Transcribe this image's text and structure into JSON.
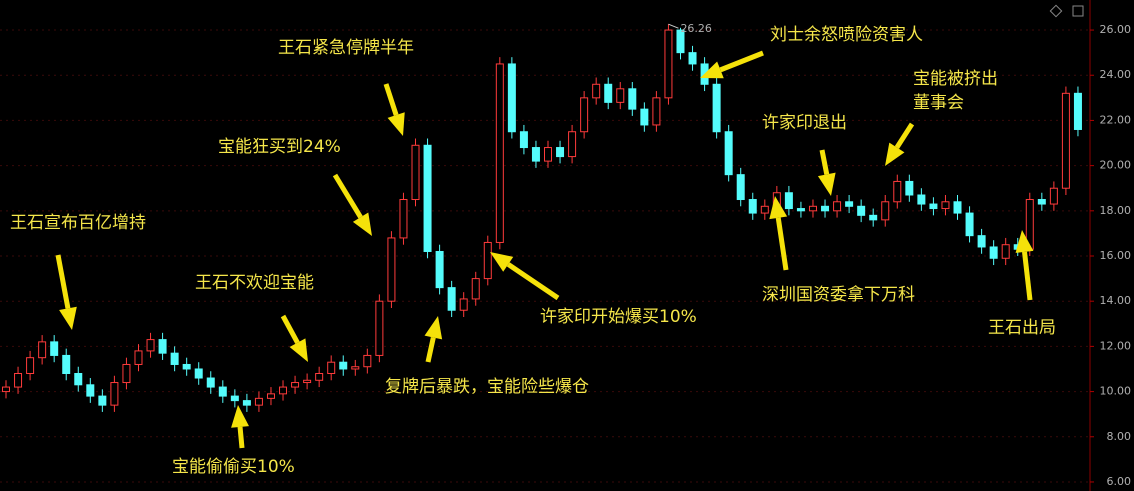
{
  "chart_data": {
    "type": "candlestick",
    "open": [
      10.0,
      10.2,
      10.8,
      11.5,
      12.2,
      11.6,
      10.8,
      10.3,
      9.8,
      9.4,
      10.4,
      11.2,
      11.8,
      12.3,
      11.7,
      11.2,
      11.0,
      10.6,
      10.2,
      9.8,
      9.6,
      9.4,
      9.7,
      9.9,
      10.2,
      10.4,
      10.5,
      10.8,
      11.3,
      11.0,
      11.1,
      11.6,
      14.0,
      16.8,
      18.5,
      20.9,
      16.2,
      14.6,
      13.6,
      14.1,
      15.0,
      16.6,
      24.5,
      21.5,
      20.8,
      20.2,
      20.8,
      20.4,
      21.5,
      23.0,
      23.6,
      22.8,
      23.4,
      22.5,
      21.8,
      23.0,
      26.0,
      25.0,
      24.5,
      23.6,
      21.5,
      19.6,
      18.5,
      17.9,
      18.2,
      18.8,
      18.1,
      18.0,
      18.2,
      18.0,
      18.4,
      18.2,
      17.8,
      17.6,
      18.4,
      19.3,
      18.7,
      18.3,
      18.1,
      18.4,
      17.9,
      16.9,
      16.4,
      15.9,
      16.5,
      16.3,
      18.5,
      18.3,
      19.0,
      23.2
    ],
    "close": [
      10.2,
      10.8,
      11.5,
      12.2,
      11.6,
      10.8,
      10.3,
      9.8,
      9.4,
      10.4,
      11.2,
      11.8,
      12.3,
      11.7,
      11.2,
      11.0,
      10.6,
      10.2,
      9.8,
      9.6,
      9.4,
      9.7,
      9.9,
      10.2,
      10.4,
      10.5,
      10.8,
      11.3,
      11.0,
      11.1,
      11.6,
      14.0,
      16.8,
      18.5,
      20.9,
      16.2,
      14.6,
      13.6,
      14.1,
      15.0,
      16.6,
      24.5,
      21.5,
      20.8,
      20.2,
      20.8,
      20.4,
      21.5,
      23.0,
      23.6,
      22.8,
      23.4,
      22.5,
      21.8,
      23.0,
      26.0,
      25.0,
      24.5,
      23.6,
      21.5,
      19.6,
      18.5,
      17.9,
      18.2,
      18.8,
      18.1,
      18.0,
      18.2,
      18.0,
      18.4,
      18.2,
      17.8,
      17.6,
      18.4,
      19.3,
      18.7,
      18.3,
      18.1,
      18.4,
      17.9,
      16.9,
      16.4,
      15.9,
      16.5,
      16.3,
      18.5,
      18.3,
      19.0,
      23.2,
      21.6
    ],
    "high": [
      10.5,
      11.1,
      11.8,
      12.5,
      12.5,
      11.9,
      11.1,
      10.6,
      10.1,
      10.7,
      11.5,
      12.1,
      12.6,
      12.6,
      12.0,
      11.5,
      11.3,
      10.9,
      10.5,
      10.1,
      9.9,
      10.0,
      10.2,
      10.5,
      10.7,
      10.8,
      11.1,
      11.6,
      11.6,
      11.4,
      11.9,
      14.3,
      17.1,
      18.8,
      21.2,
      21.2,
      16.5,
      14.9,
      14.4,
      15.3,
      16.9,
      24.8,
      24.8,
      21.8,
      21.1,
      21.1,
      21.1,
      21.8,
      23.3,
      23.9,
      23.9,
      23.7,
      23.7,
      22.8,
      23.3,
      26.26,
      26.1,
      25.3,
      24.8,
      23.9,
      21.8,
      19.9,
      18.8,
      18.5,
      19.1,
      19.1,
      18.4,
      18.5,
      18.5,
      18.7,
      18.7,
      18.5,
      18.1,
      18.7,
      19.6,
      19.6,
      19.0,
      18.6,
      18.7,
      18.7,
      18.2,
      17.2,
      16.7,
      16.8,
      16.8,
      18.8,
      18.8,
      19.3,
      23.5,
      23.5
    ],
    "low": [
      9.7,
      9.9,
      10.5,
      11.2,
      11.3,
      10.5,
      10.0,
      9.5,
      9.1,
      9.1,
      10.1,
      10.9,
      11.5,
      11.4,
      10.9,
      10.7,
      10.3,
      9.9,
      9.5,
      9.3,
      9.1,
      9.1,
      9.4,
      9.6,
      9.9,
      10.1,
      10.2,
      10.5,
      10.7,
      10.7,
      10.8,
      11.3,
      13.7,
      16.5,
      18.2,
      15.9,
      14.3,
      13.3,
      13.3,
      13.8,
      14.7,
      16.3,
      21.2,
      20.5,
      19.9,
      19.9,
      20.1,
      20.1,
      21.2,
      22.7,
      22.5,
      22.5,
      22.2,
      21.5,
      21.5,
      22.7,
      24.7,
      24.2,
      23.3,
      21.2,
      19.3,
      18.2,
      17.6,
      17.6,
      17.9,
      17.8,
      17.7,
      17.7,
      17.7,
      17.7,
      17.9,
      17.5,
      17.3,
      17.3,
      18.1,
      18.4,
      18.0,
      17.8,
      17.8,
      17.6,
      16.6,
      16.1,
      15.6,
      15.6,
      16.0,
      16.0,
      18.0,
      18.0,
      18.7,
      21.3
    ],
    "up_color": "#ff3b3b",
    "down_color": "#54fcfc",
    "max_label": 26.26,
    "ylim": [
      5.6,
      27.33
    ],
    "yticks": [
      {
        "value": 6,
        "label": "6.00"
      },
      {
        "value": 8,
        "label": "8.00"
      },
      {
        "value": 10,
        "label": "10.00"
      },
      {
        "value": 12,
        "label": "12.00"
      },
      {
        "value": 14,
        "label": "14.00"
      },
      {
        "value": 16,
        "label": "16.00"
      },
      {
        "value": 18,
        "label": "18.00"
      },
      {
        "value": 20,
        "label": "20.00"
      },
      {
        "value": 22,
        "label": "22.00"
      },
      {
        "value": 24,
        "label": "24.00"
      },
      {
        "value": 26,
        "label": "26.00"
      }
    ],
    "grid": true,
    "annotations": [
      {
        "lines": [
          "王石宣布百亿增持"
        ]
      },
      {
        "lines": [
          "宝能偷偷买10%"
        ]
      },
      {
        "lines": [
          "王石不欢迎宝能"
        ]
      },
      {
        "lines": [
          "宝能狂买到24%"
        ]
      },
      {
        "lines": [
          "王石紧急停牌半年"
        ]
      },
      {
        "lines": [
          "复牌后暴跌，宝能险些爆仓"
        ]
      },
      {
        "lines": [
          "许家印开始爆买10%"
        ]
      },
      {
        "lines": [
          "刘士余怒喷险资害人"
        ]
      },
      {
        "lines": [
          "宝能被挤出",
          "董事会"
        ]
      },
      {
        "lines": [
          "许家印退出"
        ]
      },
      {
        "lines": [
          "深圳国资委拿下万科"
        ]
      },
      {
        "lines": [
          "王石出局"
        ]
      }
    ]
  }
}
